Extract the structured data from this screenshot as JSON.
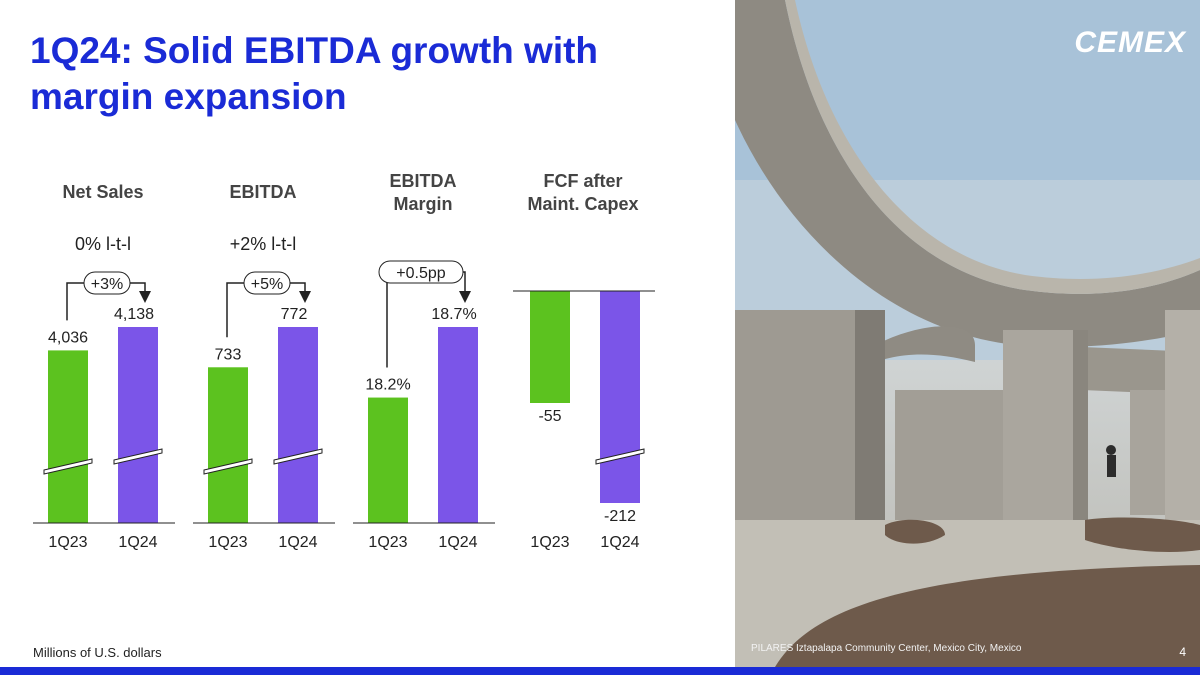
{
  "title": "1Q24: Solid EBITDA growth with margin expansion",
  "footnote": "Millions of U.S. dollars",
  "photo_caption": "PILARES Iztapalapa Community Center, Mexico City, Mexico",
  "logo_text": "CEMEX",
  "page_number": "4",
  "colors": {
    "title": "#1a2bd6",
    "green": "#5cc21f",
    "purple": "#7b55e8",
    "header": "#444444",
    "bar_band": "#1a2bd6"
  },
  "chart_data": [
    {
      "type": "bar",
      "title": "Net Sales",
      "subtitle": "0% l-t-l",
      "categories": [
        "1Q23",
        "1Q24"
      ],
      "values": [
        4036,
        4138
      ],
      "value_labels": [
        "4,036",
        "4,138"
      ],
      "change_label": "+3%",
      "axis_break": true
    },
    {
      "type": "bar",
      "title": "EBITDA",
      "subtitle": "+2% l-t-l",
      "categories": [
        "1Q23",
        "1Q24"
      ],
      "values": [
        733,
        772
      ],
      "value_labels": [
        "733",
        "772"
      ],
      "change_label": "+5%",
      "axis_break": true
    },
    {
      "type": "bar",
      "title": "EBITDA Margin",
      "subtitle": "",
      "categories": [
        "1Q23",
        "1Q24"
      ],
      "values": [
        18.2,
        18.7
      ],
      "value_labels": [
        "18.2%",
        "18.7%"
      ],
      "change_label": "+0.5pp",
      "axis_break": false
    },
    {
      "type": "bar",
      "title": "FCF after Maint. Capex",
      "subtitle": "",
      "categories": [
        "1Q23",
        "1Q24"
      ],
      "values": [
        -55,
        -212
      ],
      "value_labels": [
        "-55",
        "-212"
      ],
      "change_label": "",
      "axis_break": true
    }
  ]
}
